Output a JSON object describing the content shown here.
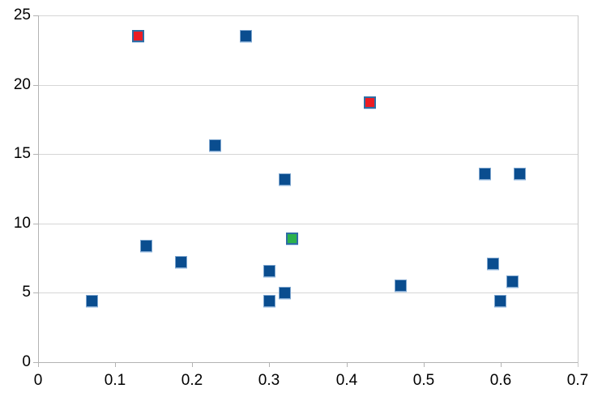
{
  "chart_data": {
    "type": "scatter",
    "title": "",
    "x_axis": {
      "min": 0,
      "max": 0.7,
      "tick_step": 0.1,
      "tick_labels": [
        "0",
        "0.1",
        "0.2",
        "0.3",
        "0.4",
        "0.5",
        "0.6",
        "0.7"
      ]
    },
    "y_axis": {
      "min": 0,
      "max": 25,
      "tick_step": 5,
      "tick_labels": [
        "0",
        "5",
        "10",
        "15",
        "20",
        "25"
      ]
    },
    "grid": "horizontal-only",
    "legend": "none",
    "series": [
      {
        "name": "blue-squares",
        "marker": "square",
        "fill_color": "#0a4d8f",
        "border_color": "#7ea6cf",
        "points": [
          [
            0.07,
            4.4
          ],
          [
            0.14,
            8.4
          ],
          [
            0.185,
            7.2
          ],
          [
            0.23,
            15.6
          ],
          [
            0.27,
            23.5
          ],
          [
            0.3,
            6.6
          ],
          [
            0.3,
            4.4
          ],
          [
            0.32,
            5.0
          ],
          [
            0.32,
            13.2
          ],
          [
            0.47,
            5.5
          ],
          [
            0.58,
            13.6
          ],
          [
            0.59,
            7.1
          ],
          [
            0.6,
            4.4
          ],
          [
            0.615,
            5.8
          ],
          [
            0.625,
            13.6
          ]
        ]
      },
      {
        "name": "red-squares",
        "marker": "square",
        "fill_color": "#ec1c24",
        "border_color": "#2e6da4",
        "points": [
          [
            0.13,
            23.5
          ],
          [
            0.43,
            18.7
          ]
        ]
      },
      {
        "name": "green-squares",
        "marker": "square",
        "fill_color": "#2bb24c",
        "border_color": "#2e6da4",
        "points": [
          [
            0.33,
            8.9
          ]
        ]
      }
    ],
    "colors": {
      "background": "#ffffff",
      "gridline": "#d6d6d6",
      "axis_line": "#b3b3b3",
      "tick_label": "#000000"
    }
  }
}
